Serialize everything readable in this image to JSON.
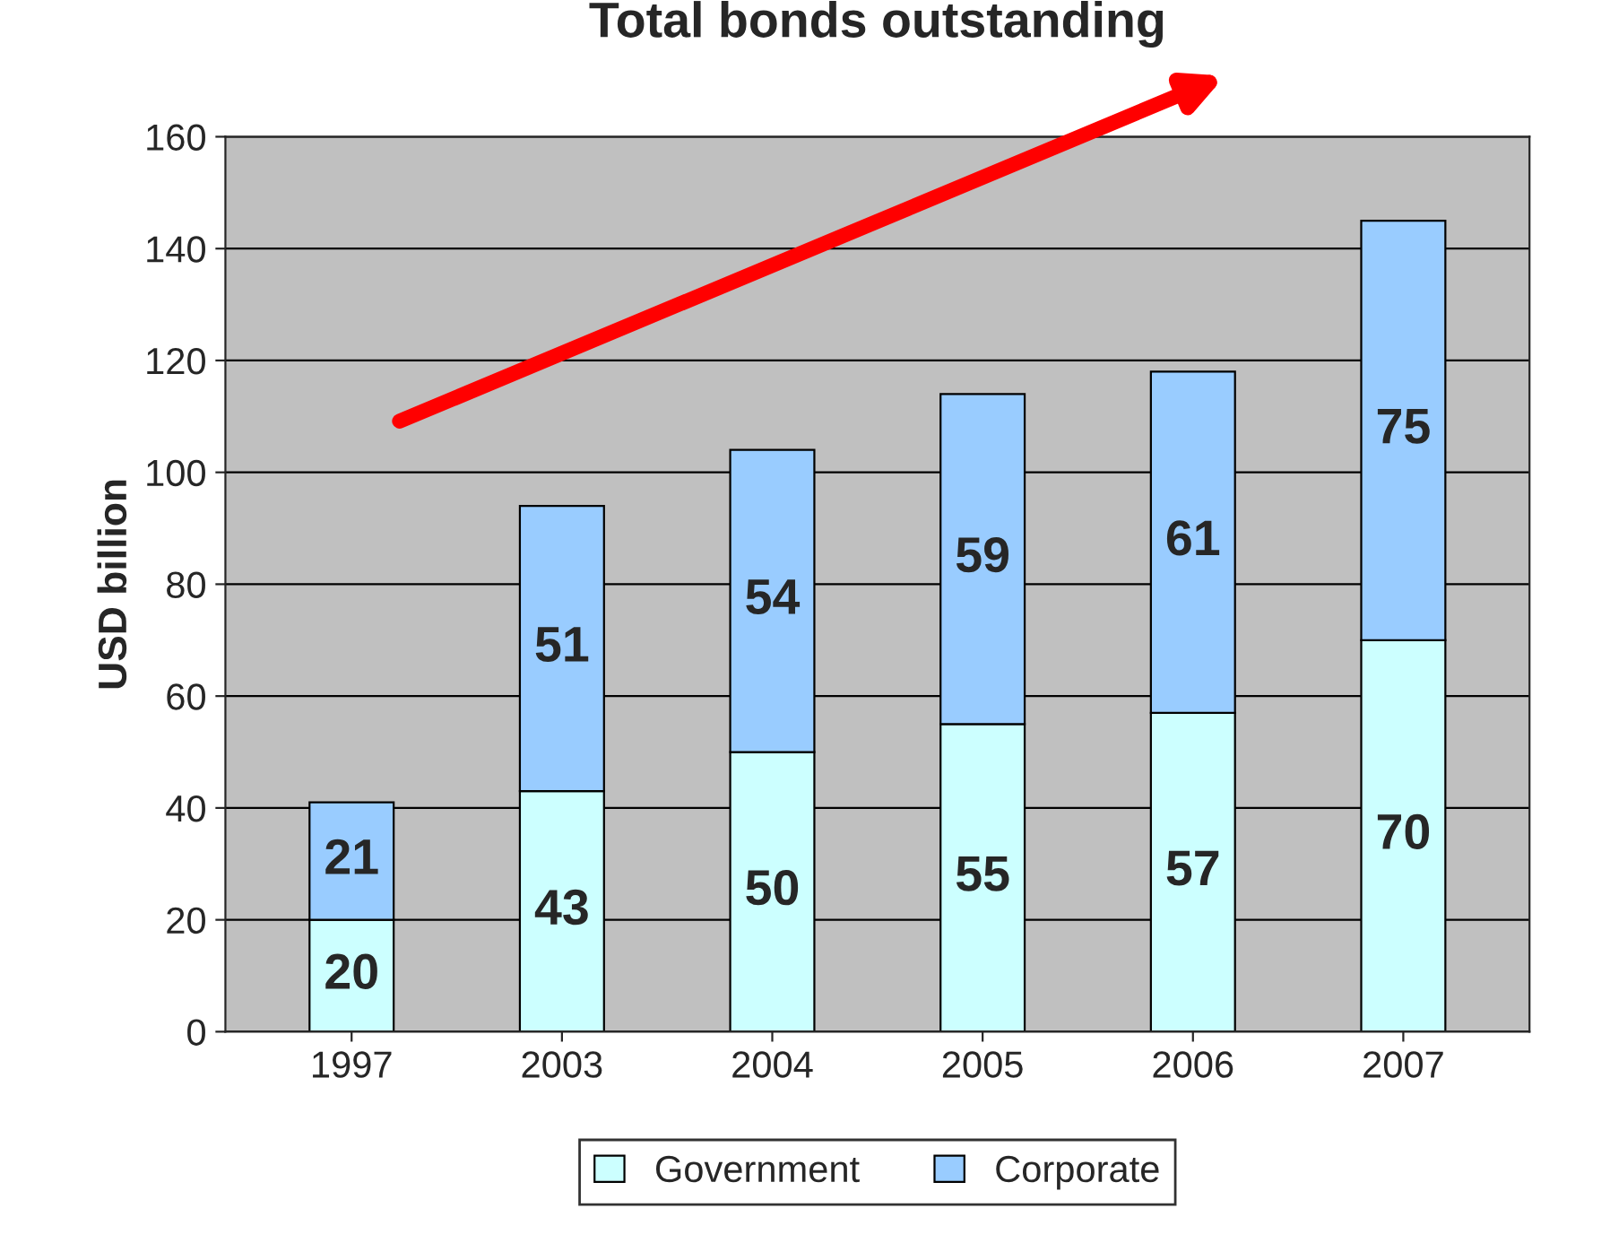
{
  "chart_data": {
    "type": "bar",
    "title": "Total bonds outstanding",
    "ylabel": "USD billion",
    "categories": [
      "1997",
      "2003",
      "2004",
      "2005",
      "2006",
      "2007"
    ],
    "series": [
      {
        "name": "Government",
        "color": "#ccffff",
        "values": [
          20,
          43,
          50,
          55,
          57,
          70
        ]
      },
      {
        "name": "Corporate",
        "color": "#99ccff",
        "values": [
          21,
          51,
          54,
          59,
          61,
          75
        ]
      }
    ],
    "stacked": true,
    "data_labels": true,
    "ylim": [
      0,
      160
    ],
    "yticks": [
      0,
      20,
      40,
      60,
      80,
      100,
      120,
      140,
      160
    ],
    "grid": "y",
    "legend": "bottom"
  }
}
